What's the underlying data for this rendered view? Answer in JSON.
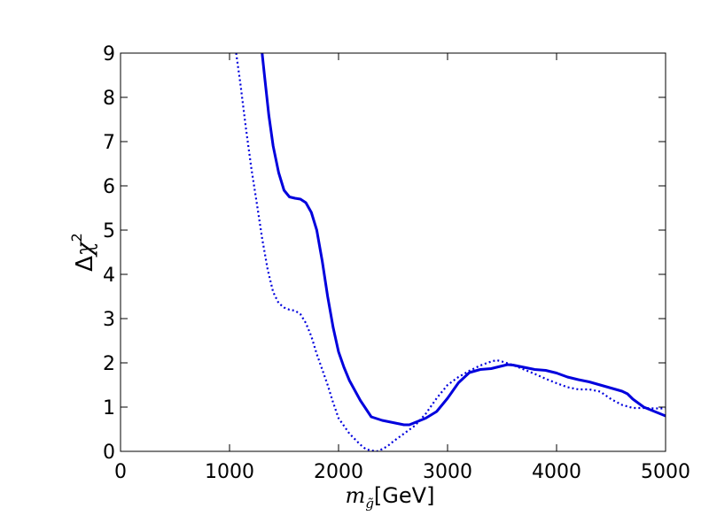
{
  "chart_data": {
    "type": "line",
    "xlabel": {
      "var": "m",
      "sub": "g̃",
      "unit": "[GeV]"
    },
    "ylabel": {
      "delta": "Δ",
      "chi": "χ",
      "sup": "2"
    },
    "xlim": [
      0,
      5000
    ],
    "ylim": [
      0,
      9
    ],
    "xticks": [
      "0",
      "1000",
      "2000",
      "3000",
      "4000",
      "5000"
    ],
    "yticks": [
      "0",
      "1",
      "2",
      "3",
      "4",
      "5",
      "6",
      "7",
      "8",
      "9"
    ],
    "grid": false,
    "colors": {
      "line": "#0000dd"
    },
    "series": [
      {
        "style": "solid",
        "x": [
          1290,
          1320,
          1360,
          1400,
          1450,
          1500,
          1550,
          1600,
          1650,
          1700,
          1750,
          1800,
          1850,
          1900,
          1950,
          2000,
          2050,
          2100,
          2200,
          2300,
          2400,
          2500,
          2600,
          2650,
          2700,
          2800,
          2900,
          3000,
          3100,
          3200,
          3300,
          3400,
          3500,
          3550,
          3600,
          3700,
          3800,
          3900,
          4000,
          4100,
          4200,
          4300,
          4400,
          4500,
          4600,
          4650,
          4700,
          4800,
          4900,
          5000
        ],
        "y": [
          9.2,
          8.5,
          7.6,
          6.9,
          6.3,
          5.9,
          5.75,
          5.72,
          5.7,
          5.62,
          5.4,
          5.0,
          4.3,
          3.5,
          2.8,
          2.25,
          1.9,
          1.6,
          1.15,
          0.78,
          0.7,
          0.65,
          0.6,
          0.6,
          0.65,
          0.75,
          0.9,
          1.2,
          1.55,
          1.78,
          1.85,
          1.87,
          1.93,
          1.96,
          1.95,
          1.9,
          1.85,
          1.83,
          1.77,
          1.68,
          1.62,
          1.57,
          1.5,
          1.43,
          1.36,
          1.3,
          1.18,
          1.0,
          0.9,
          0.8
        ]
      },
      {
        "style": "dotted",
        "x": [
          1050,
          1100,
          1150,
          1200,
          1250,
          1300,
          1350,
          1400,
          1450,
          1500,
          1550,
          1600,
          1650,
          1700,
          1750,
          1800,
          1850,
          1900,
          1950,
          2000,
          2100,
          2200,
          2250,
          2300,
          2350,
          2400,
          2450,
          2500,
          2600,
          2700,
          2800,
          2900,
          3000,
          3100,
          3200,
          3300,
          3400,
          3450,
          3500,
          3600,
          3700,
          3800,
          3900,
          4000,
          4100,
          4200,
          4300,
          4400,
          4500,
          4600,
          4700,
          4800,
          4900,
          5000
        ],
        "y": [
          9.2,
          8.3,
          7.3,
          6.4,
          5.6,
          4.8,
          4.1,
          3.6,
          3.35,
          3.25,
          3.2,
          3.18,
          3.1,
          2.9,
          2.6,
          2.2,
          1.85,
          1.5,
          1.1,
          0.75,
          0.4,
          0.15,
          0.05,
          0.02,
          0.0,
          0.05,
          0.12,
          0.22,
          0.4,
          0.58,
          0.85,
          1.2,
          1.5,
          1.68,
          1.82,
          1.94,
          2.03,
          2.06,
          2.03,
          1.95,
          1.85,
          1.75,
          1.64,
          1.54,
          1.45,
          1.4,
          1.4,
          1.35,
          1.18,
          1.05,
          0.98,
          0.98,
          0.97,
          0.97
        ]
      }
    ]
  }
}
